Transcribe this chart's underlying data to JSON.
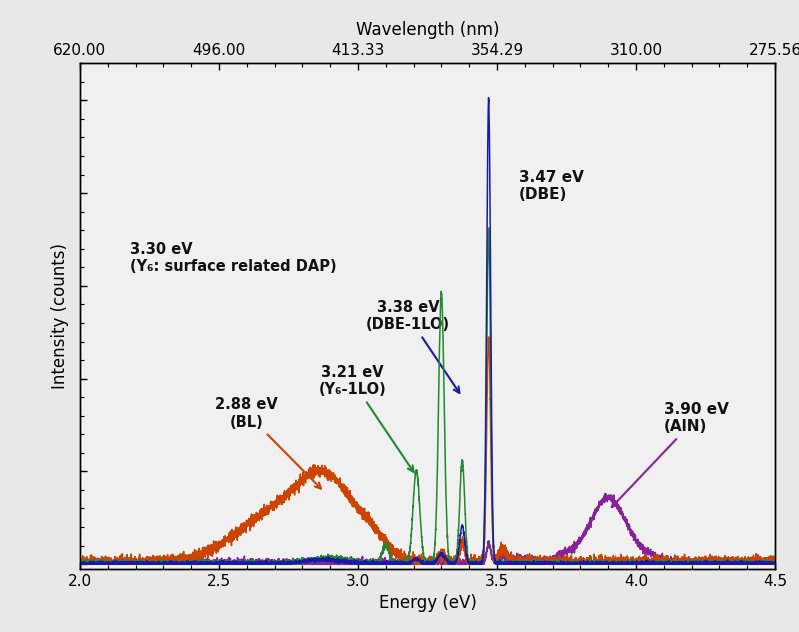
{
  "xlim": [
    2.0,
    4.5
  ],
  "xlabel": "Energy (eV)",
  "ylabel": "Intensity (counts)",
  "top_xlabel": "Wavelength (nm)",
  "top_xticks": [
    2.0,
    2.5,
    3.0,
    3.5,
    4.0,
    4.5
  ],
  "top_xticklabels": [
    "620.00",
    "496.00",
    "413.33",
    "354.29",
    "310.00",
    "275.56"
  ],
  "bottom_xticks": [
    2.0,
    2.5,
    3.0,
    3.5,
    4.0,
    4.5
  ],
  "background_color": "#e8e8e8",
  "plot_bg_color": "#f0f0f0",
  "colors": {
    "blue": "#1a1aaa",
    "orange": "#cc4400",
    "green": "#228833",
    "purple": "#882299"
  },
  "ann_color": "#111111",
  "ann_arrow_blue": "#1a1aaa",
  "ann_arrow_green": "#228833",
  "ann_arrow_orange": "#cc4400",
  "ann_arrow_purple": "#882299"
}
